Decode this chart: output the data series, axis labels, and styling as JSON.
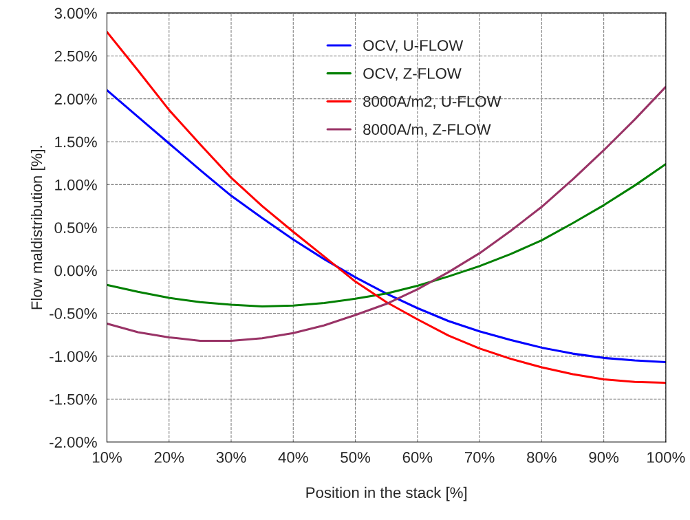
{
  "chart_data": {
    "type": "line",
    "xlabel": "Position in the stack [%]",
    "ylabel": "Flow maldistribution [%].",
    "x": [
      10,
      15,
      20,
      25,
      30,
      35,
      40,
      45,
      50,
      55,
      60,
      65,
      70,
      75,
      80,
      85,
      90,
      95,
      100
    ],
    "series": [
      {
        "name": "OCV, U-FLOW",
        "color": "#0000ff",
        "values": [
          2.1,
          1.79,
          1.48,
          1.17,
          0.87,
          0.61,
          0.36,
          0.13,
          -0.08,
          -0.27,
          -0.44,
          -0.59,
          -0.71,
          -0.81,
          -0.9,
          -0.97,
          -1.02,
          -1.05,
          -1.07
        ]
      },
      {
        "name": "OCV, Z-FLOW",
        "color": "#008000",
        "values": [
          -0.17,
          -0.25,
          -0.32,
          -0.37,
          -0.4,
          -0.42,
          -0.41,
          -0.38,
          -0.33,
          -0.27,
          -0.18,
          -0.07,
          0.05,
          0.19,
          0.35,
          0.55,
          0.76,
          0.99,
          1.24
        ]
      },
      {
        "name": "8000A/m2, U-FLOW",
        "color": "#ff0000",
        "values": [
          2.78,
          2.33,
          1.87,
          1.47,
          1.08,
          0.75,
          0.45,
          0.16,
          -0.13,
          -0.37,
          -0.57,
          -0.76,
          -0.91,
          -1.03,
          -1.13,
          -1.21,
          -1.27,
          -1.3,
          -1.31
        ]
      },
      {
        "name": "8000A/m, Z-FLOW",
        "color": "#993366",
        "values": [
          -0.62,
          -0.72,
          -0.78,
          -0.82,
          -0.82,
          -0.79,
          -0.73,
          -0.64,
          -0.52,
          -0.39,
          -0.22,
          -0.02,
          0.2,
          0.46,
          0.74,
          1.06,
          1.4,
          1.76,
          2.14
        ]
      }
    ],
    "xlim": [
      10,
      100
    ],
    "xticks": [
      {
        "value": 10,
        "label": "10%"
      },
      {
        "value": 20,
        "label": "20%"
      },
      {
        "value": 30,
        "label": "30%"
      },
      {
        "value": 40,
        "label": "40%"
      },
      {
        "value": 50,
        "label": "50%"
      },
      {
        "value": 60,
        "label": "60%"
      },
      {
        "value": 70,
        "label": "70%"
      },
      {
        "value": 80,
        "label": "80%"
      },
      {
        "value": 90,
        "label": "90%"
      },
      {
        "value": 100,
        "label": "100%"
      }
    ],
    "ylim": [
      -2,
      3
    ],
    "yticks": [
      {
        "value": -2,
        "label": "-2.00%"
      },
      {
        "value": -1.5,
        "label": "-1.50%"
      },
      {
        "value": -1,
        "label": "-1.00%"
      },
      {
        "value": -0.5,
        "label": "-0.50%"
      },
      {
        "value": 0,
        "label": "0.00%"
      },
      {
        "value": 0.5,
        "label": "0.50%"
      },
      {
        "value": 1,
        "label": "1.00%"
      },
      {
        "value": 1.5,
        "label": "1.50%"
      },
      {
        "value": 2,
        "label": "2.00%"
      },
      {
        "value": 2.5,
        "label": "2.50%"
      },
      {
        "value": 3,
        "label": "3.00%"
      }
    ],
    "grid": true,
    "legend": "top",
    "marker": "none",
    "line_style": "solid"
  }
}
